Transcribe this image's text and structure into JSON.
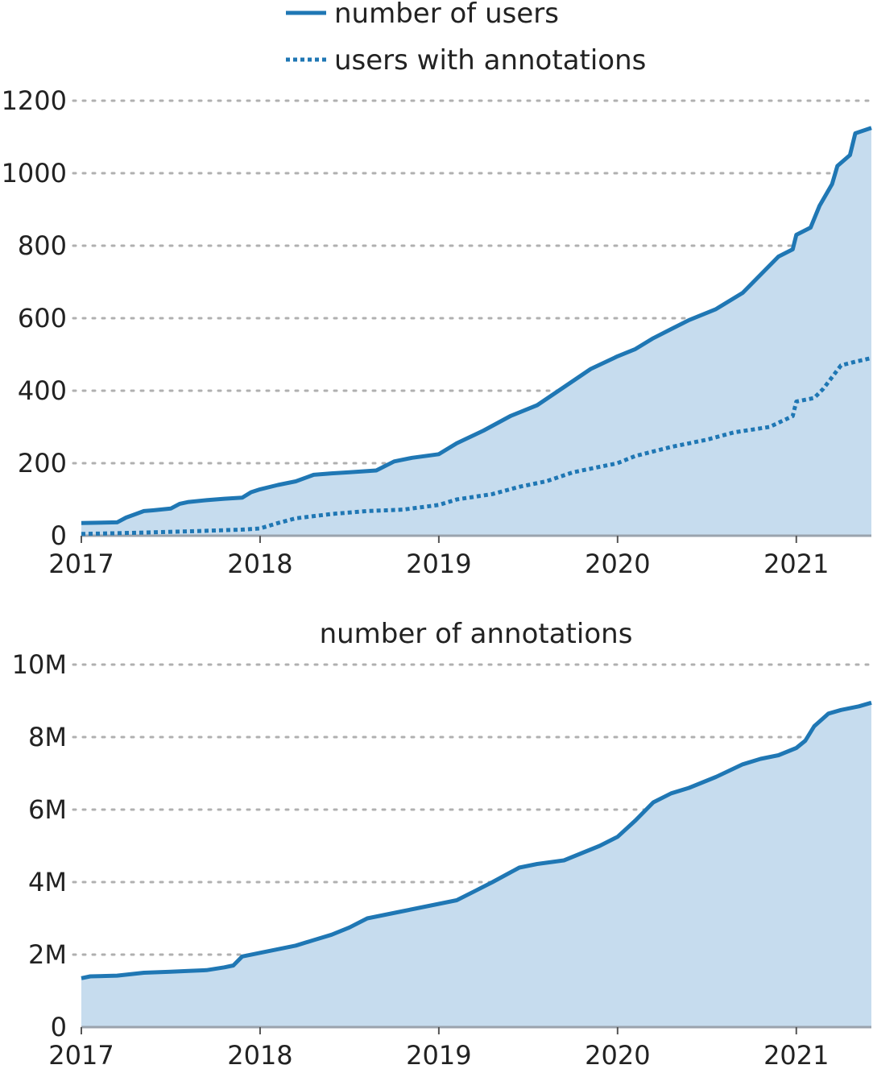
{
  "colors": {
    "line": "#1f77b4",
    "fill": "#c6dcee",
    "grid": "#b0b0b0"
  },
  "chart_data": [
    {
      "type": "area",
      "title": "",
      "legend_position": "top-center",
      "legend": {
        "solid": "number of users",
        "dotted": "users with annotations"
      },
      "x_ticks": [
        "2017",
        "2018",
        "2019",
        "2020",
        "2021"
      ],
      "xlim": [
        2017.0,
        2021.42
      ],
      "y_ticks": [
        "0",
        "200",
        "400",
        "600",
        "800",
        "1000",
        "1200"
      ],
      "ylim": [
        0,
        1200
      ],
      "series": [
        {
          "name": "number of users",
          "style": "solid",
          "filled": true,
          "x": [
            2017.0,
            2017.2,
            2017.25,
            2017.35,
            2017.4,
            2017.5,
            2017.55,
            2017.6,
            2017.7,
            2017.8,
            2017.9,
            2017.95,
            2018.0,
            2018.1,
            2018.2,
            2018.3,
            2018.4,
            2018.5,
            2018.65,
            2018.75,
            2018.85,
            2019.0,
            2019.1,
            2019.25,
            2019.4,
            2019.55,
            2019.7,
            2019.85,
            2020.0,
            2020.1,
            2020.2,
            2020.3,
            2020.4,
            2020.55,
            2020.7,
            2020.8,
            2020.9,
            2020.98,
            2021.0,
            2021.08,
            2021.13,
            2021.2,
            2021.23,
            2021.3,
            2021.33,
            2021.42
          ],
          "y": [
            35,
            37,
            50,
            68,
            70,
            75,
            88,
            93,
            98,
            102,
            105,
            120,
            128,
            140,
            150,
            168,
            172,
            175,
            180,
            205,
            215,
            225,
            255,
            290,
            330,
            360,
            410,
            460,
            495,
            515,
            545,
            570,
            595,
            625,
            670,
            720,
            770,
            790,
            830,
            850,
            910,
            970,
            1020,
            1050,
            1110,
            1125
          ]
        },
        {
          "name": "users with annotations",
          "style": "dotted",
          "filled": false,
          "x": [
            2017.0,
            2017.3,
            2017.6,
            2017.9,
            2018.0,
            2018.1,
            2018.2,
            2018.4,
            2018.6,
            2018.8,
            2019.0,
            2019.1,
            2019.3,
            2019.45,
            2019.6,
            2019.75,
            2019.9,
            2020.0,
            2020.1,
            2020.3,
            2020.5,
            2020.65,
            2020.85,
            2020.98,
            2021.0,
            2021.1,
            2021.15,
            2021.25,
            2021.33,
            2021.42
          ],
          "y": [
            5,
            8,
            12,
            17,
            20,
            35,
            48,
            60,
            68,
            72,
            85,
            100,
            115,
            135,
            150,
            175,
            190,
            200,
            220,
            245,
            265,
            285,
            300,
            330,
            370,
            380,
            405,
            470,
            480,
            490
          ]
        }
      ]
    },
    {
      "type": "area",
      "title": "number of annotations",
      "x_ticks": [
        "2017",
        "2018",
        "2019",
        "2020",
        "2021"
      ],
      "xlim": [
        2017.0,
        2021.42
      ],
      "y_ticks": [
        "0",
        "2M",
        "4M",
        "6M",
        "8M",
        "10M"
      ],
      "ylim": [
        0,
        10000000
      ],
      "series": [
        {
          "name": "number of annotations",
          "style": "solid",
          "filled": true,
          "x": [
            2017.0,
            2017.05,
            2017.2,
            2017.35,
            2017.5,
            2017.6,
            2017.7,
            2017.8,
            2017.85,
            2017.9,
            2018.0,
            2018.1,
            2018.2,
            2018.3,
            2018.4,
            2018.5,
            2018.6,
            2018.7,
            2018.8,
            2018.9,
            2019.0,
            2019.1,
            2019.2,
            2019.3,
            2019.45,
            2019.55,
            2019.7,
            2019.8,
            2019.9,
            2020.0,
            2020.1,
            2020.2,
            2020.3,
            2020.4,
            2020.55,
            2020.7,
            2020.8,
            2020.9,
            2021.0,
            2021.05,
            2021.1,
            2021.18,
            2021.25,
            2021.35,
            2021.42
          ],
          "y": [
            1350000,
            1400000,
            1420000,
            1500000,
            1530000,
            1550000,
            1570000,
            1650000,
            1700000,
            1950000,
            2050000,
            2150000,
            2250000,
            2400000,
            2550000,
            2750000,
            3000000,
            3100000,
            3200000,
            3300000,
            3400000,
            3500000,
            3750000,
            4000000,
            4400000,
            4500000,
            4600000,
            4800000,
            5000000,
            5250000,
            5700000,
            6200000,
            6450000,
            6600000,
            6900000,
            7250000,
            7400000,
            7500000,
            7700000,
            7900000,
            8300000,
            8650000,
            8750000,
            8850000,
            8950000
          ]
        }
      ]
    }
  ]
}
